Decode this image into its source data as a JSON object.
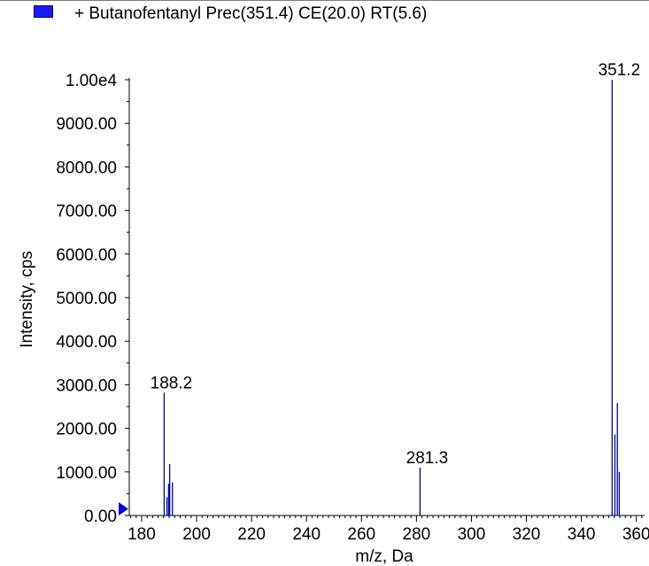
{
  "legend": {
    "label": "+ Butanofentanyl Prec(351.4) CE(20.0) RT(5.6)",
    "swatch_color": "#1a1aff"
  },
  "chart_data": {
    "type": "bar",
    "title": "",
    "xlabel": "m/z, Da",
    "ylabel": "Intensity, cps",
    "xlim": [
      175.5,
      363
    ],
    "ylim": [
      0,
      10000
    ],
    "x_ticks": [
      180,
      200,
      220,
      240,
      260,
      280,
      300,
      320,
      340,
      360
    ],
    "x_tick_labels": [
      "180",
      "200",
      "220",
      "240",
      "260",
      "280",
      "300",
      "320",
      "340",
      "360"
    ],
    "y_ticks": [
      0,
      1000,
      2000,
      3000,
      4000,
      5000,
      6000,
      7000,
      8000,
      9000,
      10000
    ],
    "y_tick_labels": [
      "0.00",
      "1000.00",
      "2000.00",
      "3000.00",
      "4000.00",
      "5000.00",
      "6000.00",
      "7000.00",
      "8000.00",
      "9000.00",
      "1.00e4"
    ],
    "bar_color": "#0000cc",
    "peaks": [
      {
        "mz": 188.2,
        "intensity": 2820,
        "label": "188.2"
      },
      {
        "mz": 189.2,
        "intensity": 420,
        "label": ""
      },
      {
        "mz": 189.8,
        "intensity": 730,
        "label": ""
      },
      {
        "mz": 190.2,
        "intensity": 1180,
        "label": ""
      },
      {
        "mz": 191.2,
        "intensity": 760,
        "label": ""
      },
      {
        "mz": 281.3,
        "intensity": 1100,
        "label": "281.3"
      },
      {
        "mz": 351.2,
        "intensity": 10000,
        "label": "351.2"
      },
      {
        "mz": 352.2,
        "intensity": 1860,
        "label": ""
      },
      {
        "mz": 353.1,
        "intensity": 2580,
        "label": ""
      },
      {
        "mz": 353.8,
        "intensity": 1000,
        "label": ""
      }
    ],
    "grid": false,
    "legend_position": "top-left"
  }
}
